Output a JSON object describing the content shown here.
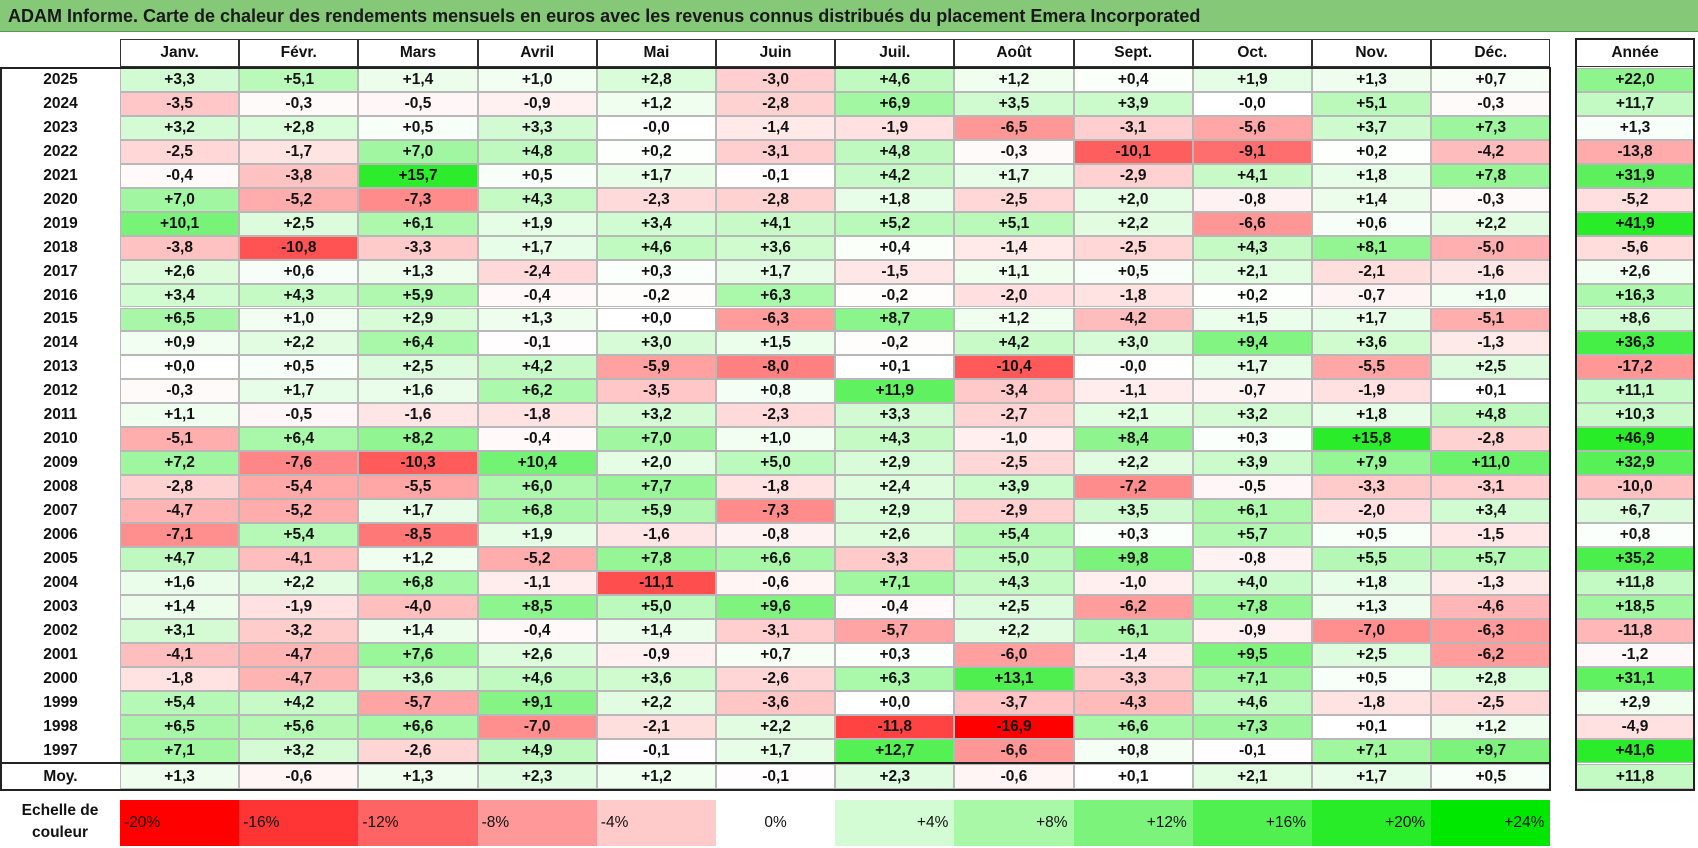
{
  "title": "ADAM Informe. Carte de chaleur des rendements mensuels en euros avec les revenus connus distribués du placement Emera Incorporated",
  "chart_data": {
    "type": "heatmap",
    "title": "ADAM Informe. Carte de chaleur des rendements mensuels en euros avec les revenus connus distribués du placement Emera Incorporated",
    "columns": [
      "Janv.",
      "Févr.",
      "Mars",
      "Avril",
      "Mai",
      "Juin",
      "Juil.",
      "Août",
      "Sept.",
      "Oct.",
      "Nov.",
      "Déc."
    ],
    "annual_header": "Année",
    "rows": [
      {
        "year": "2025",
        "values": [
          3.3,
          5.1,
          1.4,
          1.0,
          2.8,
          -3.0,
          4.6,
          1.2,
          0.4,
          1.9,
          1.3,
          0.7
        ],
        "annual": 22.0
      },
      {
        "year": "2024",
        "values": [
          -3.5,
          -0.3,
          -0.5,
          -0.9,
          1.2,
          -2.8,
          6.9,
          3.5,
          3.9,
          -0.0,
          5.1,
          -0.3
        ],
        "annual": 11.7
      },
      {
        "year": "2023",
        "values": [
          3.2,
          2.8,
          0.5,
          3.3,
          -0.0,
          -1.4,
          -1.9,
          -6.5,
          -3.1,
          -5.6,
          3.7,
          7.3
        ],
        "annual": 1.3
      },
      {
        "year": "2022",
        "values": [
          -2.5,
          -1.7,
          7.0,
          4.8,
          0.2,
          -3.1,
          4.8,
          -0.3,
          -10.1,
          -9.1,
          0.2,
          -4.2
        ],
        "annual": -13.8
      },
      {
        "year": "2021",
        "values": [
          -0.4,
          -3.8,
          15.7,
          0.5,
          1.7,
          -0.1,
          4.2,
          1.7,
          -2.9,
          4.1,
          1.8,
          7.8
        ],
        "annual": 31.9
      },
      {
        "year": "2020",
        "values": [
          7.0,
          -5.2,
          -7.3,
          4.3,
          -2.3,
          -2.8,
          1.8,
          -2.5,
          2.0,
          -0.8,
          1.4,
          -0.3
        ],
        "annual": -5.2
      },
      {
        "year": "2019",
        "values": [
          10.1,
          2.5,
          6.1,
          1.9,
          3.4,
          4.1,
          5.2,
          5.1,
          2.2,
          -6.6,
          0.6,
          2.2
        ],
        "annual": 41.9
      },
      {
        "year": "2018",
        "values": [
          -3.8,
          -10.8,
          -3.3,
          1.7,
          4.6,
          3.6,
          0.4,
          -1.4,
          -2.5,
          4.3,
          8.1,
          -5.0
        ],
        "annual": -5.6
      },
      {
        "year": "2017",
        "values": [
          2.6,
          0.6,
          1.3,
          -2.4,
          0.3,
          1.7,
          -1.5,
          1.1,
          0.5,
          2.1,
          -2.1,
          -1.6
        ],
        "annual": 2.6
      },
      {
        "year": "2016",
        "values": [
          3.4,
          4.3,
          5.9,
          -0.4,
          -0.2,
          6.3,
          -0.2,
          -2.0,
          -1.8,
          0.2,
          -0.7,
          1.0
        ],
        "annual": 16.3
      },
      {
        "year": "2015",
        "values": [
          6.5,
          1.0,
          2.9,
          1.3,
          0.0,
          -6.3,
          8.7,
          1.2,
          -4.2,
          1.5,
          1.7,
          -5.1
        ],
        "annual": 8.6
      },
      {
        "year": "2014",
        "values": [
          0.9,
          2.2,
          6.4,
          -0.1,
          3.0,
          1.5,
          -0.2,
          4.2,
          3.0,
          9.4,
          3.6,
          -1.3
        ],
        "annual": 36.3
      },
      {
        "year": "2013",
        "values": [
          0.0,
          0.5,
          2.5,
          4.2,
          -5.9,
          -8.0,
          0.1,
          -10.4,
          -0.0,
          1.7,
          -5.5,
          2.5
        ],
        "annual": -17.2
      },
      {
        "year": "2012",
        "values": [
          -0.3,
          1.7,
          1.6,
          6.2,
          -3.5,
          0.8,
          11.9,
          -3.4,
          -1.1,
          -0.7,
          -1.9,
          0.1
        ],
        "annual": 11.1
      },
      {
        "year": "2011",
        "values": [
          1.1,
          -0.5,
          -1.6,
          -1.8,
          3.2,
          -2.3,
          3.3,
          -2.7,
          2.1,
          3.2,
          1.8,
          4.8
        ],
        "annual": 10.3
      },
      {
        "year": "2010",
        "values": [
          -5.1,
          6.4,
          8.2,
          -0.4,
          7.0,
          1.0,
          4.3,
          -1.0,
          8.4,
          0.3,
          15.8,
          -2.8
        ],
        "annual": 46.9
      },
      {
        "year": "2009",
        "values": [
          7.2,
          -7.6,
          -10.3,
          10.4,
          2.0,
          5.0,
          2.9,
          -2.5,
          2.2,
          3.9,
          7.9,
          11.0
        ],
        "annual": 32.9
      },
      {
        "year": "2008",
        "values": [
          -2.8,
          -5.4,
          -5.5,
          6.0,
          7.7,
          -1.8,
          2.4,
          3.9,
          -7.2,
          -0.5,
          -3.3,
          -3.1
        ],
        "annual": -10.0
      },
      {
        "year": "2007",
        "values": [
          -4.7,
          -5.2,
          1.7,
          6.8,
          5.9,
          -7.3,
          2.9,
          -2.9,
          3.5,
          6.1,
          -2.0,
          3.4
        ],
        "annual": 6.7
      },
      {
        "year": "2006",
        "values": [
          -7.1,
          5.4,
          -8.5,
          1.9,
          -1.6,
          -0.8,
          2.6,
          5.4,
          0.3,
          5.7,
          0.5,
          -1.5
        ],
        "annual": 0.8
      },
      {
        "year": "2005",
        "values": [
          4.7,
          -4.1,
          1.2,
          -5.2,
          7.8,
          6.6,
          -3.3,
          5.0,
          9.8,
          -0.8,
          5.5,
          5.7
        ],
        "annual": 35.2
      },
      {
        "year": "2004",
        "values": [
          1.6,
          2.2,
          6.8,
          -1.1,
          -11.1,
          -0.6,
          7.1,
          4.3,
          -1.0,
          4.0,
          1.8,
          -1.3
        ],
        "annual": 11.8
      },
      {
        "year": "2003",
        "values": [
          1.4,
          -1.9,
          -4.0,
          8.5,
          5.0,
          9.6,
          -0.4,
          2.5,
          -6.2,
          7.8,
          1.3,
          -4.6
        ],
        "annual": 18.5
      },
      {
        "year": "2002",
        "values": [
          3.1,
          -3.2,
          1.4,
          -0.4,
          1.4,
          -3.1,
          -5.7,
          2.2,
          6.1,
          -0.9,
          -7.0,
          -6.3
        ],
        "annual": -11.8
      },
      {
        "year": "2001",
        "values": [
          -4.1,
          -4.7,
          7.6,
          2.6,
          -0.9,
          0.7,
          0.3,
          -6.0,
          -1.4,
          9.5,
          2.5,
          -6.2
        ],
        "annual": -1.2
      },
      {
        "year": "2000",
        "values": [
          -1.8,
          -4.7,
          3.6,
          4.6,
          3.6,
          -2.6,
          6.3,
          13.1,
          -3.3,
          7.1,
          0.5,
          2.8
        ],
        "annual": 31.1
      },
      {
        "year": "1999",
        "values": [
          5.4,
          4.2,
          -5.7,
          9.1,
          2.2,
          -3.6,
          0.0,
          -3.7,
          -4.3,
          4.6,
          -1.8,
          -2.5
        ],
        "annual": 2.9
      },
      {
        "year": "1998",
        "values": [
          6.5,
          5.6,
          6.6,
          -7.0,
          -2.1,
          2.2,
          -11.8,
          -16.9,
          6.6,
          7.3,
          0.1,
          1.2
        ],
        "annual": -4.9
      },
      {
        "year": "1997",
        "values": [
          7.1,
          3.2,
          -2.6,
          4.9,
          -0.1,
          1.7,
          12.7,
          -6.6,
          0.8,
          -0.1,
          7.1,
          9.7
        ],
        "annual": 41.6
      }
    ],
    "average": {
      "label": "Moy.",
      "values": [
        1.3,
        -0.6,
        1.3,
        2.3,
        1.2,
        -0.1,
        2.3,
        -0.6,
        0.1,
        2.1,
        1.7,
        0.5
      ],
      "annual": 11.8
    },
    "legend": {
      "label_line1": "Echelle de",
      "label_line2": "couleur",
      "stops": [
        {
          "label": "-20%",
          "color": "#ff0000"
        },
        {
          "label": "-16%",
          "color": "#ff3434"
        },
        {
          "label": "-12%",
          "color": "#ff6464"
        },
        {
          "label": "-8%",
          "color": "#ff9898"
        },
        {
          "label": "-4%",
          "color": "#ffcaca"
        },
        {
          "label": "0%",
          "color": "#ffffff"
        },
        {
          "label": "+4%",
          "color": "#d4fcd4"
        },
        {
          "label": "+8%",
          "color": "#a8f8a8"
        },
        {
          "label": "+12%",
          "color": "#7cf47c"
        },
        {
          "label": "+16%",
          "color": "#50f050"
        },
        {
          "label": "+20%",
          "color": "#28ec28"
        },
        {
          "label": "+24%",
          "color": "#00e800"
        }
      ]
    }
  }
}
